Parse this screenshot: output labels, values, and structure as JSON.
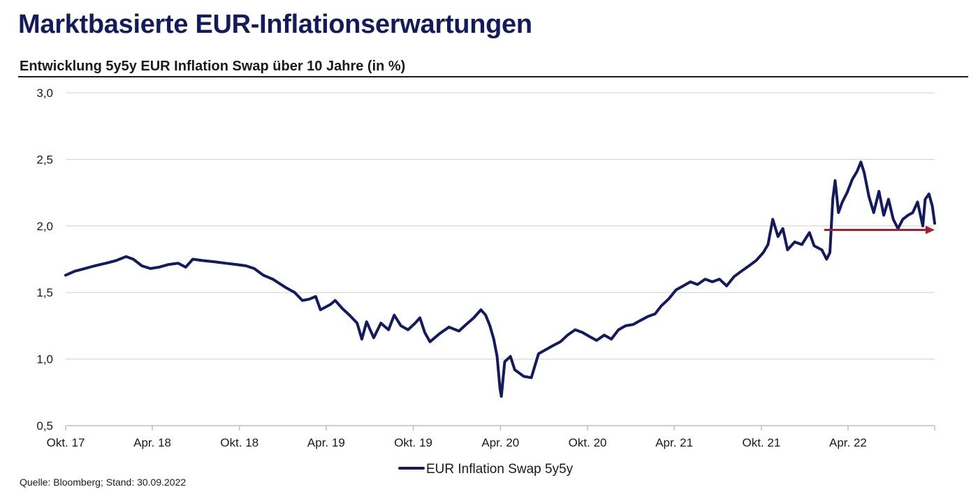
{
  "header": {
    "title": "Marktbasierte EUR-Inflationserwartungen",
    "subtitle": "Entwicklung 5y5y EUR Inflation Swap über 10 Jahre (in %)"
  },
  "footer": {
    "source": "Quelle: Bloomberg; Stand: 30.09.2022"
  },
  "colors": {
    "series": "#131b5e",
    "arrow": "#a31f2e",
    "grid": "#d0d0d0",
    "axis": "#bfbfbf",
    "title": "#131b5e"
  },
  "chart_data": {
    "type": "line",
    "title": "Entwicklung 5y5y EUR Inflation Swap über 10 Jahre (in %)",
    "xlabel": "",
    "ylabel": "",
    "x_range": [
      "2017-10-01",
      "2022-09-30"
    ],
    "ylim": [
      0.5,
      3.0
    ],
    "y_ticks": [
      {
        "value": 0.5,
        "label": "0,5"
      },
      {
        "value": 1.0,
        "label": "1,0"
      },
      {
        "value": 1.5,
        "label": "1,5"
      },
      {
        "value": 2.0,
        "label": "2,0"
      },
      {
        "value": 2.5,
        "label": "2,5"
      },
      {
        "value": 3.0,
        "label": "3,0"
      }
    ],
    "x_ticks": [
      {
        "date": "2017-10-01",
        "label": "Okt. 17"
      },
      {
        "date": "2018-04-01",
        "label": "Apr. 18"
      },
      {
        "date": "2018-10-01",
        "label": "Okt. 18"
      },
      {
        "date": "2019-04-01",
        "label": "Apr. 19"
      },
      {
        "date": "2019-10-01",
        "label": "Okt. 19"
      },
      {
        "date": "2020-04-01",
        "label": "Apr. 20"
      },
      {
        "date": "2020-10-01",
        "label": "Okt. 20"
      },
      {
        "date": "2021-04-01",
        "label": "Apr. 21"
      },
      {
        "date": "2021-10-01",
        "label": "Okt. 21"
      },
      {
        "date": "2022-04-01",
        "label": "Apr. 22"
      }
    ],
    "grid": true,
    "legend": {
      "position": "bottom-center"
    },
    "series": [
      {
        "name": "EUR Inflation Swap 5y5y",
        "points": [
          [
            "2017-10-01",
            1.63
          ],
          [
            "2017-10-20",
            1.66
          ],
          [
            "2017-11-10",
            1.68
          ],
          [
            "2017-12-01",
            1.7
          ],
          [
            "2017-12-25",
            1.72
          ],
          [
            "2018-01-15",
            1.74
          ],
          [
            "2018-02-05",
            1.77
          ],
          [
            "2018-02-20",
            1.75
          ],
          [
            "2018-03-10",
            1.7
          ],
          [
            "2018-03-28",
            1.68
          ],
          [
            "2018-04-15",
            1.69
          ],
          [
            "2018-05-05",
            1.71
          ],
          [
            "2018-05-25",
            1.72
          ],
          [
            "2018-06-10",
            1.69
          ],
          [
            "2018-06-25",
            1.75
          ],
          [
            "2018-07-15",
            1.74
          ],
          [
            "2018-08-10",
            1.73
          ],
          [
            "2018-09-01",
            1.72
          ],
          [
            "2018-09-25",
            1.71
          ],
          [
            "2018-10-15",
            1.7
          ],
          [
            "2018-11-01",
            1.68
          ],
          [
            "2018-11-20",
            1.63
          ],
          [
            "2018-12-10",
            1.6
          ],
          [
            "2019-01-05",
            1.54
          ],
          [
            "2019-01-25",
            1.5
          ],
          [
            "2019-02-10",
            1.44
          ],
          [
            "2019-02-25",
            1.45
          ],
          [
            "2019-03-10",
            1.47
          ],
          [
            "2019-03-20",
            1.37
          ],
          [
            "2019-04-10",
            1.41
          ],
          [
            "2019-04-20",
            1.44
          ],
          [
            "2019-05-05",
            1.38
          ],
          [
            "2019-05-20",
            1.33
          ],
          [
            "2019-06-05",
            1.27
          ],
          [
            "2019-06-15",
            1.15
          ],
          [
            "2019-06-25",
            1.28
          ],
          [
            "2019-07-10",
            1.16
          ],
          [
            "2019-07-25",
            1.27
          ],
          [
            "2019-08-10",
            1.22
          ],
          [
            "2019-08-22",
            1.33
          ],
          [
            "2019-09-05",
            1.25
          ],
          [
            "2019-09-20",
            1.22
          ],
          [
            "2019-10-05",
            1.27
          ],
          [
            "2019-10-15",
            1.31
          ],
          [
            "2019-10-25",
            1.2
          ],
          [
            "2019-11-05",
            1.13
          ],
          [
            "2019-11-25",
            1.19
          ],
          [
            "2019-12-15",
            1.24
          ],
          [
            "2020-01-05",
            1.21
          ],
          [
            "2020-01-20",
            1.26
          ],
          [
            "2020-02-05",
            1.31
          ],
          [
            "2020-02-20",
            1.37
          ],
          [
            "2020-03-01",
            1.33
          ],
          [
            "2020-03-10",
            1.25
          ],
          [
            "2020-03-18",
            1.15
          ],
          [
            "2020-03-25",
            1.02
          ],
          [
            "2020-03-31",
            0.78
          ],
          [
            "2020-04-03",
            0.72
          ],
          [
            "2020-04-10",
            0.98
          ],
          [
            "2020-04-22",
            1.02
          ],
          [
            "2020-05-01",
            0.92
          ],
          [
            "2020-05-20",
            0.87
          ],
          [
            "2020-06-05",
            0.86
          ],
          [
            "2020-06-20",
            1.04
          ],
          [
            "2020-07-05",
            1.07
          ],
          [
            "2020-07-20",
            1.1
          ],
          [
            "2020-08-05",
            1.13
          ],
          [
            "2020-08-20",
            1.18
          ],
          [
            "2020-09-05",
            1.22
          ],
          [
            "2020-09-20",
            1.2
          ],
          [
            "2020-10-05",
            1.17
          ],
          [
            "2020-10-20",
            1.14
          ],
          [
            "2020-11-05",
            1.18
          ],
          [
            "2020-11-20",
            1.15
          ],
          [
            "2020-12-05",
            1.22
          ],
          [
            "2020-12-20",
            1.25
          ],
          [
            "2021-01-05",
            1.26
          ],
          [
            "2021-01-20",
            1.29
          ],
          [
            "2021-02-05",
            1.32
          ],
          [
            "2021-02-20",
            1.34
          ],
          [
            "2021-03-05",
            1.4
          ],
          [
            "2021-03-20",
            1.45
          ],
          [
            "2021-04-05",
            1.52
          ],
          [
            "2021-04-20",
            1.55
          ],
          [
            "2021-05-05",
            1.58
          ],
          [
            "2021-05-20",
            1.56
          ],
          [
            "2021-06-05",
            1.6
          ],
          [
            "2021-06-20",
            1.58
          ],
          [
            "2021-07-05",
            1.6
          ],
          [
            "2021-07-20",
            1.55
          ],
          [
            "2021-08-05",
            1.62
          ],
          [
            "2021-08-20",
            1.66
          ],
          [
            "2021-09-05",
            1.7
          ],
          [
            "2021-09-20",
            1.74
          ],
          [
            "2021-10-05",
            1.8
          ],
          [
            "2021-10-15",
            1.86
          ],
          [
            "2021-10-25",
            2.05
          ],
          [
            "2021-11-05",
            1.92
          ],
          [
            "2021-11-15",
            1.98
          ],
          [
            "2021-11-25",
            1.82
          ],
          [
            "2021-12-10",
            1.88
          ],
          [
            "2021-12-25",
            1.86
          ],
          [
            "2022-01-10",
            1.95
          ],
          [
            "2022-01-20",
            1.85
          ],
          [
            "2022-02-05",
            1.82
          ],
          [
            "2022-02-15",
            1.75
          ],
          [
            "2022-02-22",
            1.8
          ],
          [
            "2022-02-28",
            2.2
          ],
          [
            "2022-03-05",
            2.34
          ],
          [
            "2022-03-12",
            2.1
          ],
          [
            "2022-03-20",
            2.18
          ],
          [
            "2022-03-30",
            2.25
          ],
          [
            "2022-04-10",
            2.35
          ],
          [
            "2022-04-20",
            2.41
          ],
          [
            "2022-04-28",
            2.48
          ],
          [
            "2022-05-05",
            2.4
          ],
          [
            "2022-05-15",
            2.22
          ],
          [
            "2022-05-25",
            2.1
          ],
          [
            "2022-06-05",
            2.26
          ],
          [
            "2022-06-15",
            2.08
          ],
          [
            "2022-06-25",
            2.2
          ],
          [
            "2022-07-05",
            2.05
          ],
          [
            "2022-07-15",
            1.98
          ],
          [
            "2022-07-25",
            2.05
          ],
          [
            "2022-08-05",
            2.08
          ],
          [
            "2022-08-15",
            2.1
          ],
          [
            "2022-08-25",
            2.18
          ],
          [
            "2022-09-05",
            2.0
          ],
          [
            "2022-09-10",
            2.2
          ],
          [
            "2022-09-18",
            2.24
          ],
          [
            "2022-09-25",
            2.15
          ],
          [
            "2022-09-30",
            2.02
          ]
        ]
      }
    ],
    "annotations": [
      {
        "type": "arrow",
        "from": [
          "2022-02-10",
          1.97
        ],
        "to": [
          "2022-09-30",
          1.97
        ]
      }
    ]
  }
}
